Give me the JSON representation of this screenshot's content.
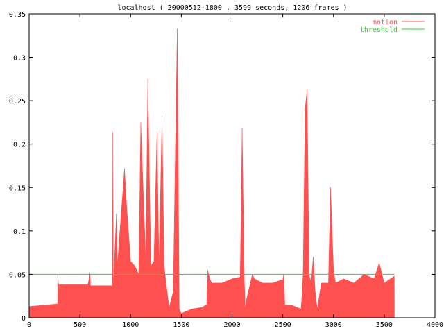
{
  "chart_data": {
    "type": "area",
    "title": "localhost ( 20000512-1800 , 3599 seconds, 1206 frames )",
    "xlabel": "",
    "ylabel": "",
    "xlim": [
      0,
      4000
    ],
    "ylim": [
      0,
      0.35
    ],
    "xticks": [
      "0",
      "500",
      "1000",
      "1500",
      "2000",
      "2500",
      "3000",
      "3500",
      "4000"
    ],
    "yticks": [
      "0",
      "0.05",
      "0.1",
      "0.15",
      "0.2",
      "0.25",
      "0.3",
      "0.35"
    ],
    "grid": false,
    "legend_position": "top-right",
    "colors": {
      "motion": "#ff5050",
      "threshold": "#30d030",
      "axes": "#000000"
    },
    "series": [
      {
        "name": "motion",
        "kind": "area",
        "x": [
          0,
          280,
          282,
          290,
          580,
          600,
          605,
          820,
          825,
          830,
          860,
          870,
          940,
          960,
          1000,
          1040,
          1080,
          1100,
          1150,
          1170,
          1200,
          1230,
          1260,
          1280,
          1310,
          1330,
          1360,
          1380,
          1420,
          1460,
          1480,
          1500,
          1600,
          1700,
          1750,
          1760,
          1780,
          1800,
          1900,
          2000,
          2080,
          2100,
          2120,
          2130,
          2140,
          2200,
          2220,
          2300,
          2400,
          2500,
          2510,
          2520,
          2600,
          2680,
          2700,
          2720,
          2740,
          2760,
          2780,
          2800,
          2820,
          2840,
          2880,
          2950,
          2970,
          3000,
          3020,
          3100,
          3200,
          3300,
          3400,
          3450,
          3500,
          3550,
          3599,
          3600
        ],
        "y": [
          0.013,
          0.016,
          0.05,
          0.038,
          0.038,
          0.052,
          0.037,
          0.037,
          0.214,
          0.037,
          0.12,
          0.06,
          0.172,
          0.13,
          0.065,
          0.06,
          0.05,
          0.225,
          0.065,
          0.275,
          0.06,
          0.065,
          0.215,
          0.06,
          0.233,
          0.06,
          0.03,
          0.012,
          0.03,
          0.333,
          0.01,
          0.005,
          0.01,
          0.012,
          0.015,
          0.055,
          0.045,
          0.04,
          0.04,
          0.045,
          0.047,
          0.219,
          0.045,
          0.01,
          0.02,
          0.05,
          0.045,
          0.04,
          0.04,
          0.044,
          0.05,
          0.015,
          0.014,
          0.01,
          0.05,
          0.24,
          0.263,
          0.05,
          0.04,
          0.07,
          0.03,
          0.01,
          0.04,
          0.04,
          0.15,
          0.055,
          0.04,
          0.045,
          0.04,
          0.05,
          0.045,
          0.063,
          0.04,
          0.044,
          0.048,
          0
        ]
      },
      {
        "name": "threshold",
        "kind": "line",
        "x": [
          0,
          3599
        ],
        "y": [
          0.05,
          0.05
        ]
      }
    ]
  }
}
